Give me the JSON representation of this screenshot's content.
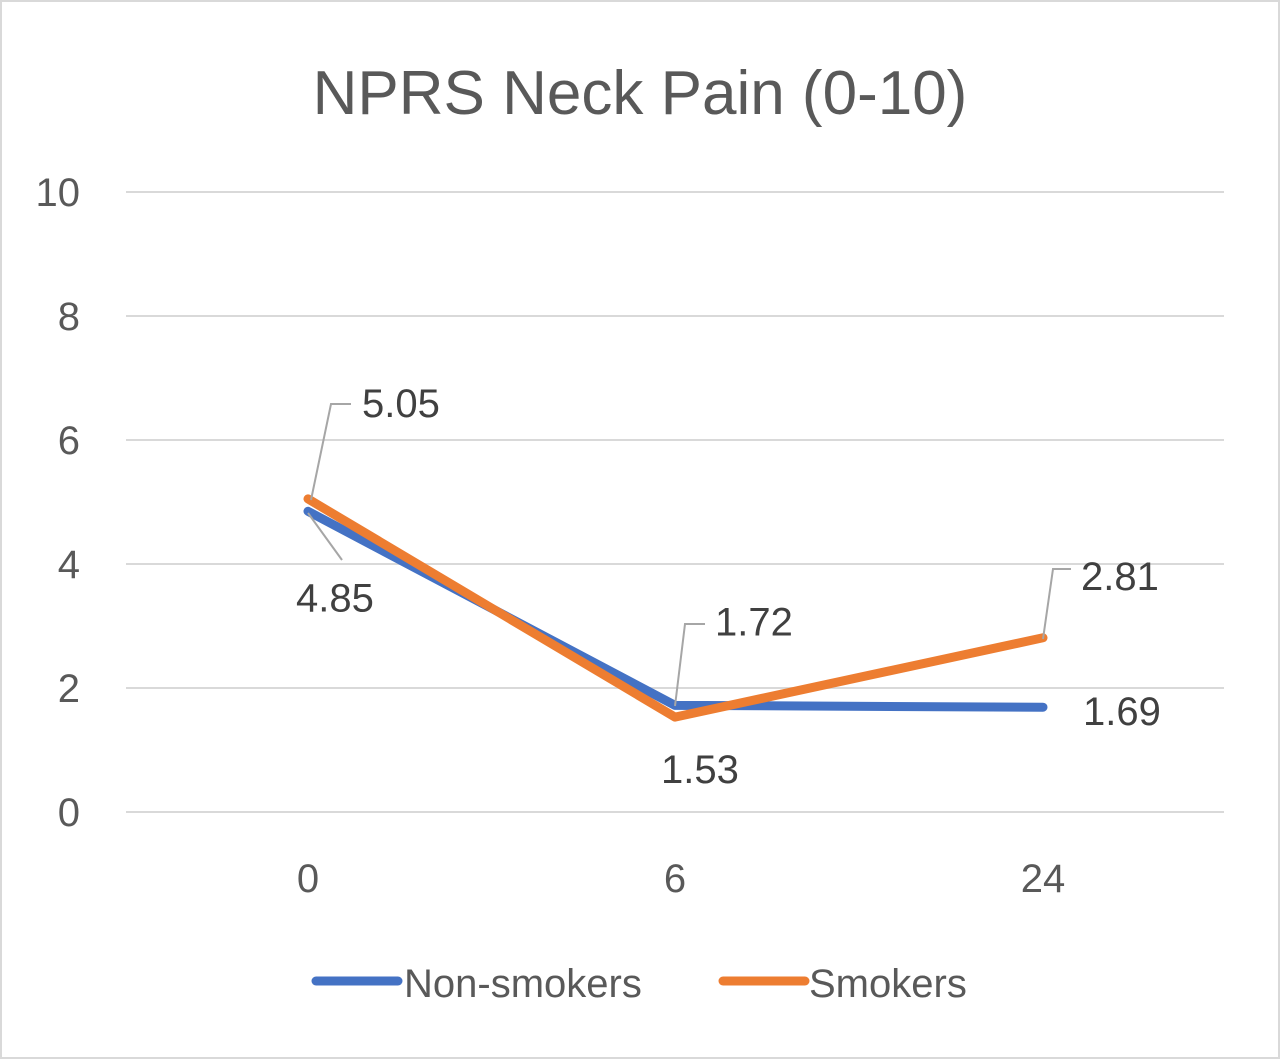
{
  "chart_data": {
    "type": "line",
    "title": "NPRS Neck Pain (0-10)",
    "xlabel": "",
    "ylabel": "",
    "categories": [
      "0",
      "6",
      "24"
    ],
    "ylim": [
      0,
      10
    ],
    "yticks": [
      "0",
      "2",
      "4",
      "6",
      "8",
      "10"
    ],
    "grid": true,
    "legend_position": "bottom",
    "series": [
      {
        "name": "Non-smokers",
        "color": "#4472c4",
        "values": [
          4.85,
          1.72,
          1.69
        ],
        "labels": [
          "4.85",
          "1.72",
          "1.69"
        ]
      },
      {
        "name": "Smokers",
        "color": "#ed7d31",
        "values": [
          5.05,
          1.53,
          2.81
        ],
        "labels": [
          "5.05",
          "1.53",
          "2.81"
        ]
      }
    ]
  }
}
